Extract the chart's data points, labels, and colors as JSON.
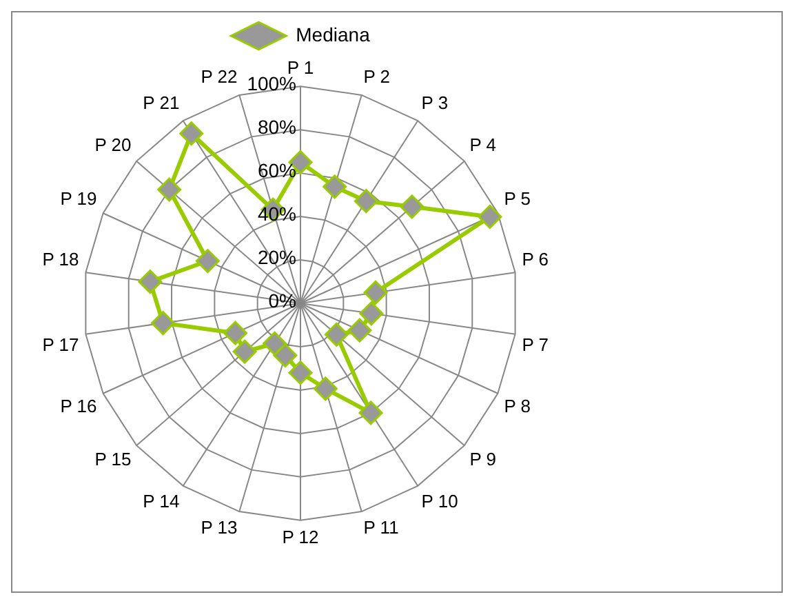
{
  "chart_data": {
    "type": "radar",
    "categories": [
      "P 1",
      "P 2",
      "P 3",
      "P 4",
      "P 5",
      "P 6",
      "P 7",
      "P 8",
      "P 9",
      "P 10",
      "P 11",
      "P 12",
      "P 13",
      "P 14",
      "P 15",
      "P 16",
      "P 17",
      "P 18",
      "P 19",
      "P 20",
      "P 21",
      "P 22"
    ],
    "series": [
      {
        "name": "Mediana",
        "color": "#99cc00",
        "values": [
          65,
          56,
          56,
          68,
          96,
          35,
          33,
          30,
          22,
          60,
          41,
          32,
          25,
          22,
          34,
          33,
          64,
          70,
          47,
          80,
          93,
          45
        ]
      }
    ],
    "ylim": [
      0,
      100
    ],
    "yticks": [
      {
        "value": 0,
        "label": "0%"
      },
      {
        "value": 20,
        "label": "20%"
      },
      {
        "value": 40,
        "label": "40%"
      },
      {
        "value": 60,
        "label": "60%"
      },
      {
        "value": 80,
        "label": "80%"
      },
      {
        "value": 100,
        "label": "100%"
      }
    ],
    "grid": true,
    "legend": "top",
    "marker": "diamond"
  }
}
